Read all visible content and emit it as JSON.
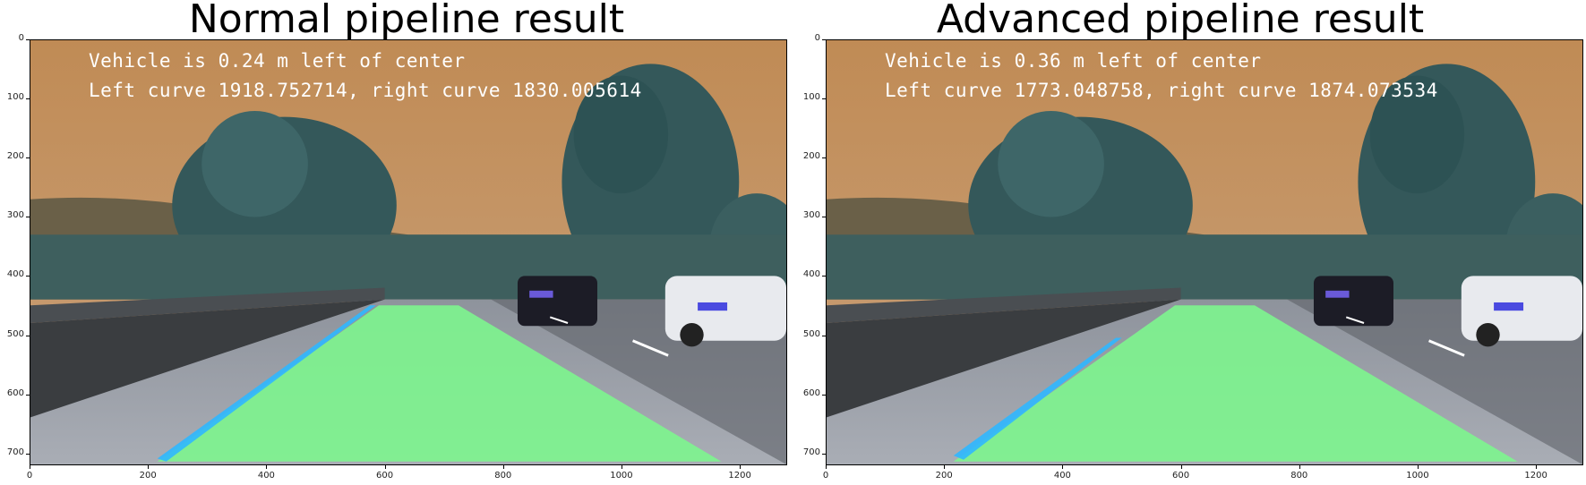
{
  "figure": {
    "panels": [
      {
        "title": "Normal pipeline result",
        "overlay": {
          "line1": "Vehicle is 0.24 m left of center",
          "line2": "Left curve 1918.752714, right curve 1830.005614"
        }
      },
      {
        "title": "Advanced pipeline result",
        "overlay": {
          "line1": "Vehicle is 0.36 m left of center",
          "line2": "Left curve 1773.048758, right curve 1874.073534"
        }
      }
    ],
    "x_ticks": [
      "0",
      "200",
      "400",
      "600",
      "800",
      "1000",
      "1200"
    ],
    "y_ticks": [
      "0",
      "100",
      "200",
      "300",
      "400",
      "500",
      "600",
      "700"
    ],
    "x_range": [
      0,
      1280
    ],
    "y_range": [
      0,
      720
    ],
    "colors": {
      "sky": "#b88a5c",
      "lane_fill": "#7df58e",
      "lane_edge": "#2fb7ff",
      "road": "#9a9fa8",
      "trees": "#34585a"
    }
  }
}
